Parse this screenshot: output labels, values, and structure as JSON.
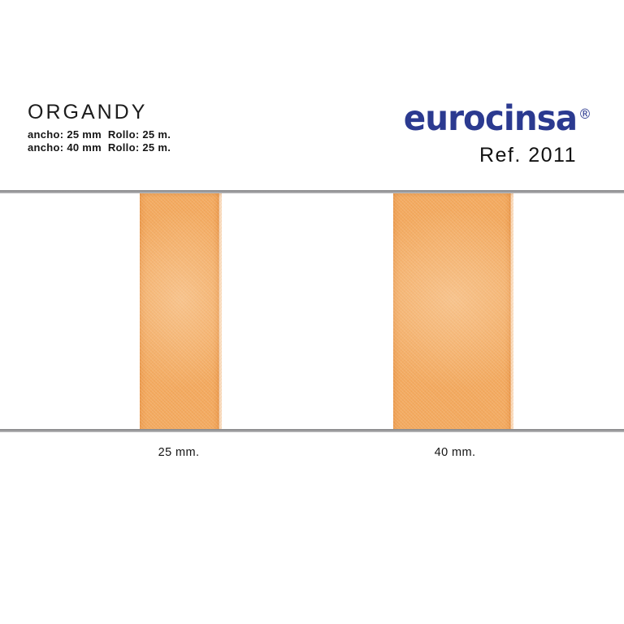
{
  "page": {
    "background_color": "#ffffff"
  },
  "product": {
    "title": "ORGANDY",
    "specs": [
      {
        "text": "ancho: 25 mm  Rollo: 25 m."
      },
      {
        "text": "ancho: 40 mm  Rollo: 25 m."
      }
    ]
  },
  "brand": {
    "logo_text": "eurocinsa",
    "registered_mark": "®",
    "reference_label": "Ref. 2011",
    "logo_color": "#2b3a90"
  },
  "samples": {
    "rail_color": "#9b9b9d",
    "ribbon_base_color": "#f3aa60",
    "ribbon_edge_color": "#e08434",
    "items": [
      {
        "label": "25 mm."
      },
      {
        "label": "40 mm."
      }
    ]
  }
}
